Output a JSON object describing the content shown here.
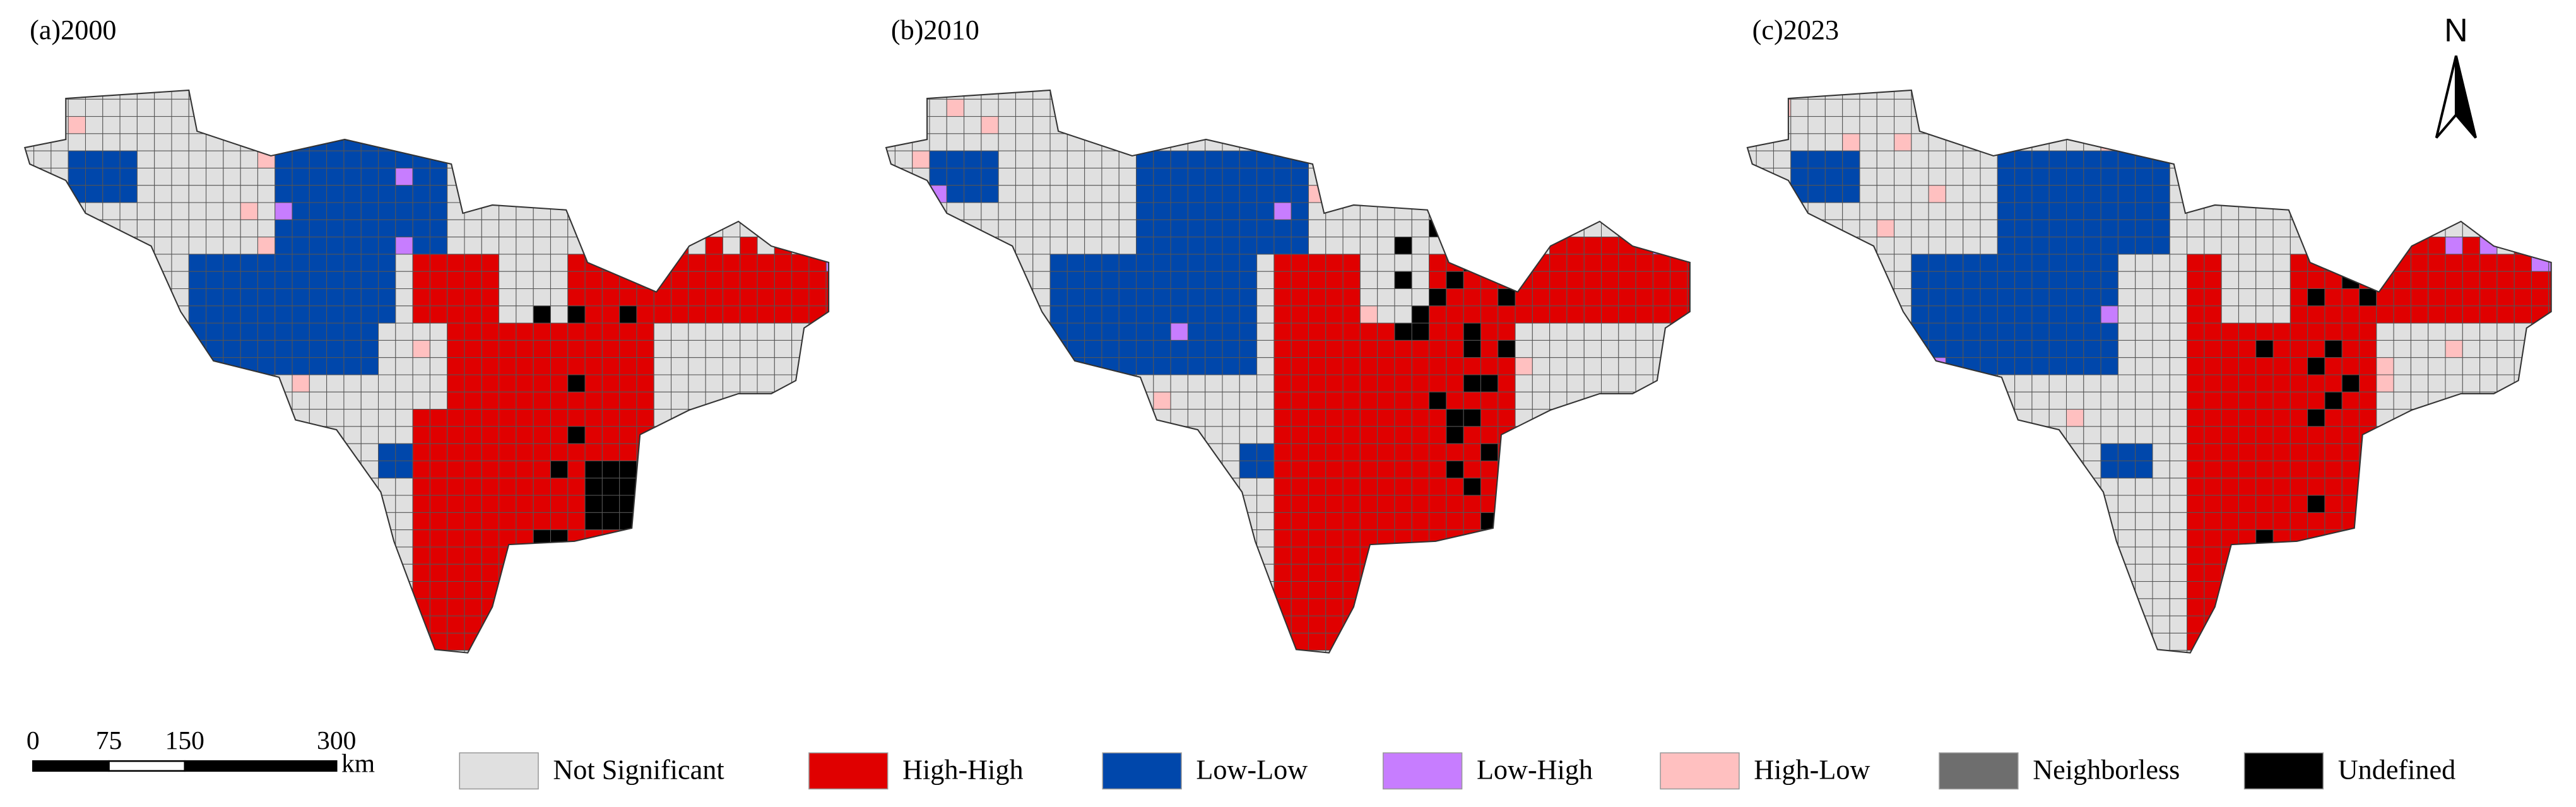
{
  "panels": [
    {
      "label": "(a)2000"
    },
    {
      "label": "(b)2010"
    },
    {
      "label": "(c)2023"
    }
  ],
  "legend": [
    {
      "label": "Not Significant",
      "color": "#e0e0e0"
    },
    {
      "label": "High-High",
      "color": "#e00000"
    },
    {
      "label": "Low-Low",
      "color": "#0047ab"
    },
    {
      "label": "Low-High",
      "color": "#c77dff"
    },
    {
      "label": "High-Low",
      "color": "#ffc0c0"
    },
    {
      "label": "Neighborless",
      "color": "#6e6e6e"
    },
    {
      "label": "Undefined",
      "color": "#000000"
    }
  ],
  "scale_bar": {
    "ticks": [
      "0",
      "75",
      "150",
      "300"
    ],
    "unit": "km"
  },
  "north": "N"
}
